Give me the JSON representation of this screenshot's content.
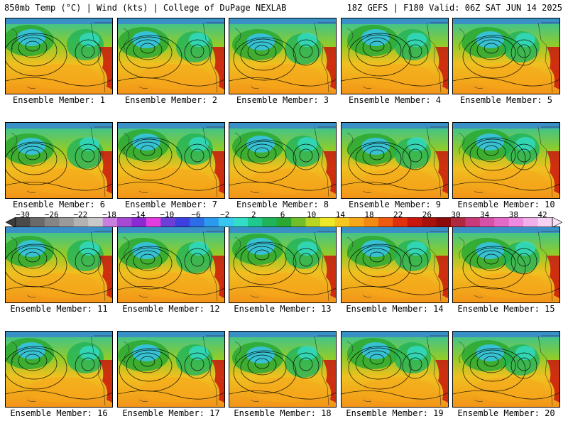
{
  "header": {
    "title_left": "850mb Temp (°C) | Wind (kts) | College of DuPage NEXLAB",
    "title_right": "18Z GEFS | F180 Valid: 06Z SAT JUN 14 2025"
  },
  "panels": [
    {
      "caption": "Ensemble Member: 1"
    },
    {
      "caption": "Ensemble Member: 2"
    },
    {
      "caption": "Ensemble Member: 3"
    },
    {
      "caption": "Ensemble Member: 4"
    },
    {
      "caption": "Ensemble Member: 5"
    },
    {
      "caption": "Ensemble Member: 6"
    },
    {
      "caption": "Ensemble Member: 7"
    },
    {
      "caption": "Ensemble Member: 8"
    },
    {
      "caption": "Ensemble Member: 9"
    },
    {
      "caption": "Ensemble Member: 10"
    },
    {
      "caption": "Ensemble Member: 11"
    },
    {
      "caption": "Ensemble Member: 12"
    },
    {
      "caption": "Ensemble Member: 13"
    },
    {
      "caption": "Ensemble Member: 14"
    },
    {
      "caption": "Ensemble Member: 15"
    },
    {
      "caption": "Ensemble Member: 16"
    },
    {
      "caption": "Ensemble Member: 17"
    },
    {
      "caption": "Ensemble Member: 18"
    },
    {
      "caption": "Ensemble Member: 19"
    },
    {
      "caption": "Ensemble Member: 20"
    }
  ],
  "colorbar": {
    "tick_labels": [
      "-30",
      "-26",
      "-22",
      "-18",
      "-14",
      "-10",
      "-6",
      "-2",
      "2",
      "6",
      "10",
      "14",
      "18",
      "22",
      "26",
      "30",
      "34",
      "38",
      "42"
    ],
    "colors": [
      "#4a4a4a",
      "#6a6a6a",
      "#858585",
      "#9a9a9a",
      "#b3b3b3",
      "#c9c9c9",
      "#c87fe0",
      "#a64ad6",
      "#8c2ad1",
      "#e23de0",
      "#6b3fd8",
      "#3d3fe0",
      "#2a6de6",
      "#2a9aec",
      "#37c6ef",
      "#33dcc8",
      "#1fc98e",
      "#1fb35a",
      "#2aa832",
      "#6fbe2a",
      "#b9d523",
      "#eeea27",
      "#f6c81f",
      "#f6a81a",
      "#f38a14",
      "#ee5a10",
      "#e0300e",
      "#c8160e",
      "#a8100c",
      "#8c0a0a",
      "#b02840",
      "#c83a7a",
      "#d650a8",
      "#e46ac8",
      "#ee8ae0",
      "#f2b0ea",
      "#f6d2f2"
    ]
  }
}
